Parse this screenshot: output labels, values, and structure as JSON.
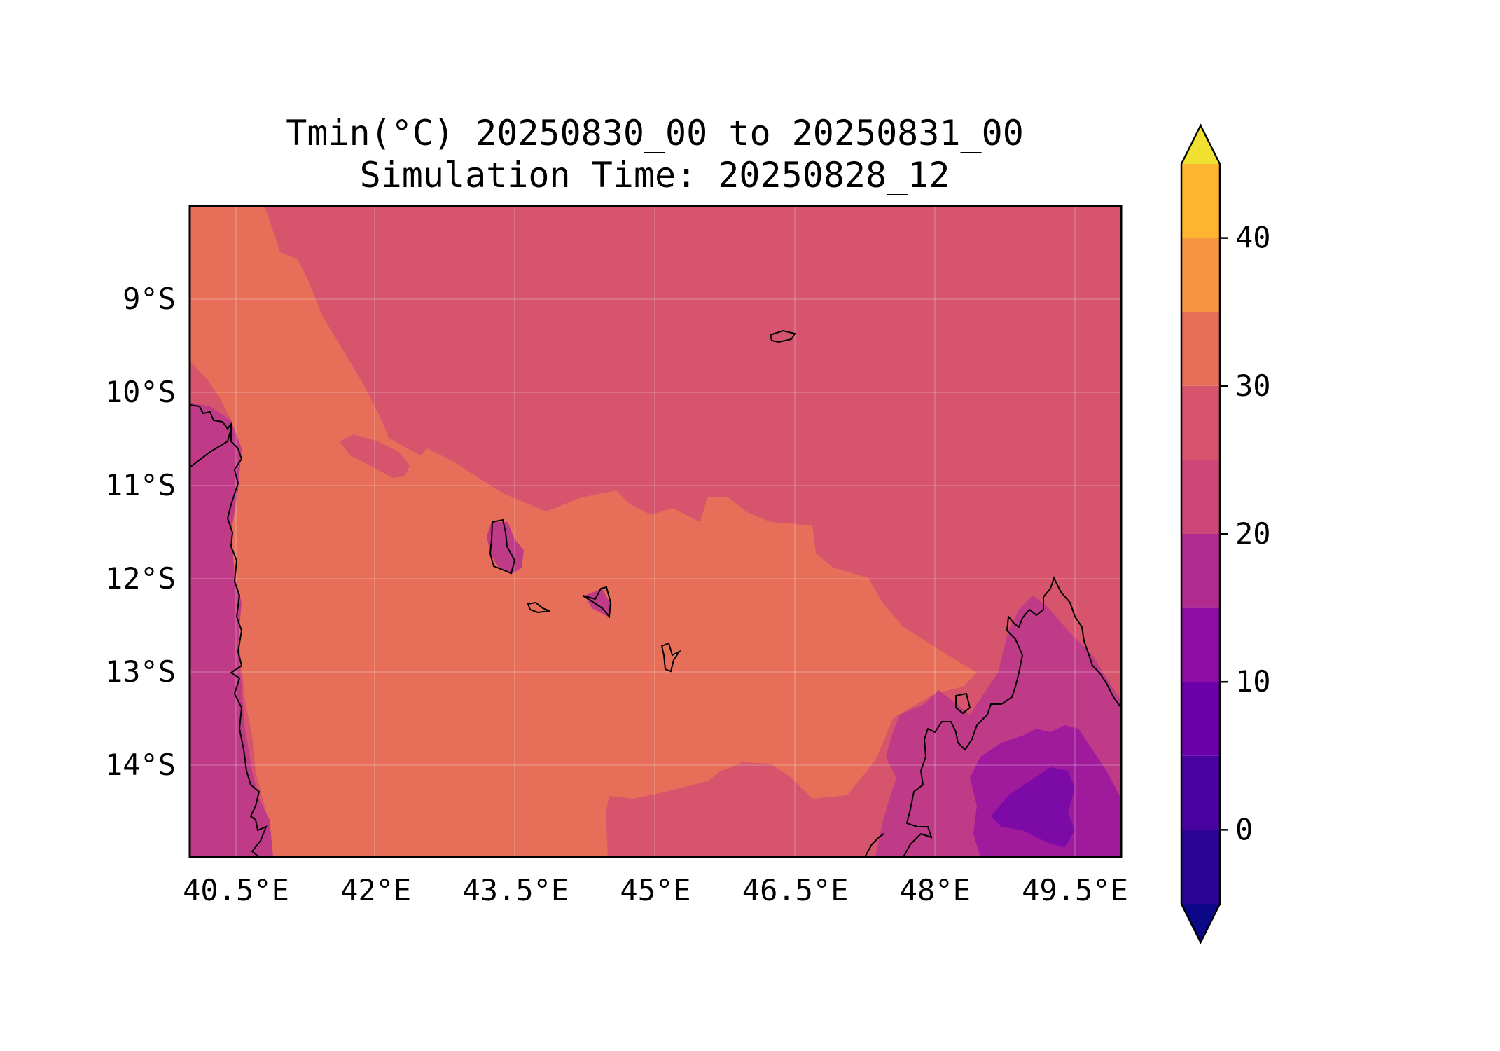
{
  "title": {
    "line1": "Tmin(°C) 20250830_00 to 20250831_00",
    "line2": "Simulation Time: 20250828_12"
  },
  "map": {
    "lon_range": [
      40.0,
      50.0
    ],
    "lat_range": [
      -15.0,
      -8.0
    ],
    "x_ticks": [
      {
        "value": 40.5,
        "label": "40.5°E"
      },
      {
        "value": 42.0,
        "label": "42°E"
      },
      {
        "value": 43.5,
        "label": "43.5°E"
      },
      {
        "value": 45.0,
        "label": "45°E"
      },
      {
        "value": 46.5,
        "label": "46.5°E"
      },
      {
        "value": 48.0,
        "label": "48°E"
      },
      {
        "value": 49.5,
        "label": "49.5°E"
      }
    ],
    "y_ticks": [
      {
        "value": -9,
        "label": "9°S"
      },
      {
        "value": -10,
        "label": "10°S"
      },
      {
        "value": -11,
        "label": "11°S"
      },
      {
        "value": -12,
        "label": "12°S"
      },
      {
        "value": -13,
        "label": "13°S"
      },
      {
        "value": -14,
        "label": "14°S"
      }
    ],
    "gridlines": true,
    "coastlines": true
  },
  "colorbar": {
    "levels": [
      -5,
      0,
      5,
      10,
      15,
      20,
      25,
      30,
      35,
      40,
      45
    ],
    "colors": [
      "#0d0887",
      "#2a0593",
      "#4903a0",
      "#6a00a8",
      "#8f0da4",
      "#b12a90",
      "#cc4778",
      "#d6556d",
      "#e76f5a",
      "#f89540",
      "#fdb42f",
      "#f0e130"
    ],
    "tick_values": [
      0,
      10,
      20,
      30,
      40
    ],
    "tick_labels": [
      "0",
      "10",
      "20",
      "30",
      "40"
    ],
    "extend": "both"
  },
  "colors": {
    "range_20_25": "#d6556d",
    "range_25_30": "#e76f5a",
    "range_15_20": "#bf3a87",
    "range_10_15": "#a01a9c",
    "range_5_10": "#7c0aa6"
  }
}
